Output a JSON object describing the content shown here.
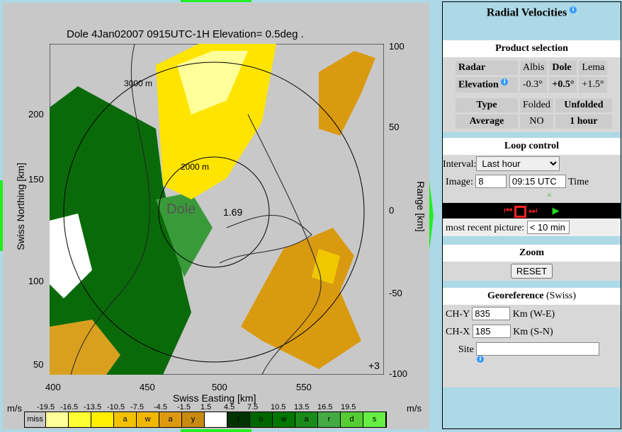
{
  "chart": {
    "title": "Dole 4Jan02007 0915UTC-1H Elevation= 0.5deg .",
    "xlabel": "Swiss Easting [km]",
    "ylabel": "Swiss Northing [km]",
    "rlabel": "Range [km]",
    "xticks": [
      "400",
      "450",
      "500",
      "550"
    ],
    "yticks": [
      "200",
      "150",
      "100",
      "50"
    ],
    "rticks": [
      "100",
      "50",
      "0",
      "-50",
      "-100"
    ],
    "annotations": [
      "3000 m",
      "2000 m",
      "Dole",
      "1.69",
      "+3"
    ]
  },
  "legend": {
    "unit": "m/s",
    "thresholds": [
      "-19.5",
      "-16.5",
      "-13.5",
      "-10.5",
      "-7.5",
      "-4.5",
      "-1.5",
      "1.5",
      "4.5",
      "7.5",
      "10.5",
      "13.5",
      "16.5",
      "19.5"
    ],
    "cells": [
      {
        "t": "miss",
        "c": "#c8c8c8"
      },
      {
        "t": "",
        "c": "#ffff99"
      },
      {
        "t": "",
        "c": "#ffff33"
      },
      {
        "t": "",
        "c": "#ffee00"
      },
      {
        "t": "a",
        "c": "#f2c200"
      },
      {
        "t": "w",
        "c": "#f0b800"
      },
      {
        "t": "a",
        "c": "#dd9a10"
      },
      {
        "t": "y",
        "c": "#c88a10"
      },
      {
        "t": "",
        "c": "#ffffff"
      },
      {
        "t": "t",
        "c": "#003300"
      },
      {
        "t": "o",
        "c": "#006600"
      },
      {
        "t": "w",
        "c": "#007700"
      },
      {
        "t": "a",
        "c": "#1a8a1a"
      },
      {
        "t": "r",
        "c": "#44aa44"
      },
      {
        "t": "d",
        "c": "#55cc33"
      },
      {
        "t": "s",
        "c": "#66ee44"
      }
    ]
  },
  "panel": {
    "title": "Radial Velocities",
    "product_selection": "Product selection",
    "radar_label": "Radar",
    "radars": [
      "Albis",
      "Dole",
      "Lema"
    ],
    "elevation_label": "Elevation",
    "elevations": [
      "-0.3°",
      "+0.5°",
      "+1.5°"
    ],
    "type_label": "Type",
    "types": [
      "Folded",
      "Unfolded"
    ],
    "average_label": "Average",
    "averages": [
      "NO",
      "1 hour"
    ],
    "loop_control": "Loop control",
    "interval_label": "Interval:",
    "interval_value": "Last hour",
    "image_label": "Image:",
    "image_value": "8",
    "time_value": "09:15 UTC",
    "time_label": "Time",
    "recent_label": "most recent picture:",
    "recent_value": "< 10 min",
    "zoom": "Zoom",
    "reset": "RESET",
    "georef": "Georeference",
    "georef_sub": "(Swiss)",
    "chy_label": "CH-Y",
    "chy_value": "835",
    "chy_unit": "Km (W-E)",
    "chx_label": "CH-X",
    "chx_value": "185",
    "chx_unit": "Km (S-N)",
    "site_label": "Site",
    "site_value": ""
  }
}
